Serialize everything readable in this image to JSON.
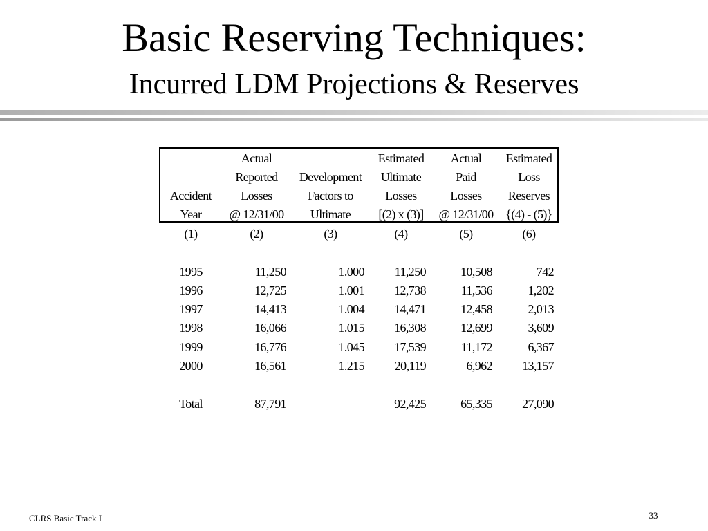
{
  "title": "Basic Reserving Techniques:",
  "subtitle": "Incurred LDM Projections & Reserves",
  "table": {
    "headers": [
      {
        "lines": [
          "",
          "",
          "Accident",
          "Year"
        ]
      },
      {
        "lines": [
          "Actual",
          "Reported",
          "Losses",
          "@ 12/31/00"
        ]
      },
      {
        "lines": [
          "",
          "Development",
          "Factors to",
          "Ultimate"
        ]
      },
      {
        "lines": [
          "Estimated",
          "Ultimate",
          "Losses",
          "[(2) x (3)]"
        ]
      },
      {
        "lines": [
          "Actual",
          "Paid",
          "Losses",
          "@ 12/31/00"
        ]
      },
      {
        "lines": [
          "Estimated",
          "Loss",
          "Reserves",
          "{(4) - (5)}"
        ]
      }
    ],
    "column_numbers": [
      "(1)",
      "(2)",
      "(3)",
      "(4)",
      "(5)",
      "(6)"
    ],
    "rows": [
      [
        "1995",
        "11,250",
        "1.000",
        "11,250",
        "10,508",
        "742"
      ],
      [
        "1996",
        "12,725",
        "1.001",
        "12,738",
        "11,536",
        "1,202"
      ],
      [
        "1997",
        "14,413",
        "1.004",
        "14,471",
        "12,458",
        "2,013"
      ],
      [
        "1998",
        "16,066",
        "1.015",
        "16,308",
        "12,699",
        "3,609"
      ],
      [
        "1999",
        "16,776",
        "1.045",
        "17,539",
        "11,172",
        "6,367"
      ],
      [
        "2000",
        "16,561",
        "1.215",
        "20,119",
        "6,962",
        "13,157"
      ]
    ],
    "total": [
      "Total",
      "87,791",
      "",
      "92,425",
      "65,335",
      "27,090"
    ]
  },
  "footer": {
    "left": "CLRS Basic Track I",
    "page_number": "33"
  }
}
